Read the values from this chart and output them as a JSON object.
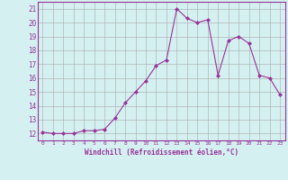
{
  "x": [
    0,
    1,
    2,
    3,
    4,
    5,
    6,
    7,
    8,
    9,
    10,
    11,
    12,
    13,
    14,
    15,
    16,
    17,
    18,
    19,
    20,
    21,
    22,
    23
  ],
  "y": [
    12.1,
    12.0,
    12.0,
    12.0,
    12.2,
    12.2,
    12.3,
    13.1,
    14.2,
    15.0,
    15.8,
    16.9,
    17.3,
    21.0,
    20.3,
    20.0,
    20.2,
    16.2,
    18.7,
    19.0,
    18.5,
    16.2,
    16.0,
    14.8
  ],
  "xlim": [
    -0.5,
    23.5
  ],
  "ylim": [
    11.5,
    21.5
  ],
  "xticks": [
    0,
    1,
    2,
    3,
    4,
    5,
    6,
    7,
    8,
    9,
    10,
    11,
    12,
    13,
    14,
    15,
    16,
    17,
    18,
    19,
    20,
    21,
    22,
    23
  ],
  "yticks": [
    12,
    13,
    14,
    15,
    16,
    17,
    18,
    19,
    20,
    21
  ],
  "xlabel": "Windchill (Refroidissement éolien,°C)",
  "line_color": "#993399",
  "marker": "D",
  "marker_size": 2,
  "bg_color": "#d4f0f0",
  "grid_color": "#aaaaaa",
  "tick_color": "#993399",
  "label_color": "#993399"
}
